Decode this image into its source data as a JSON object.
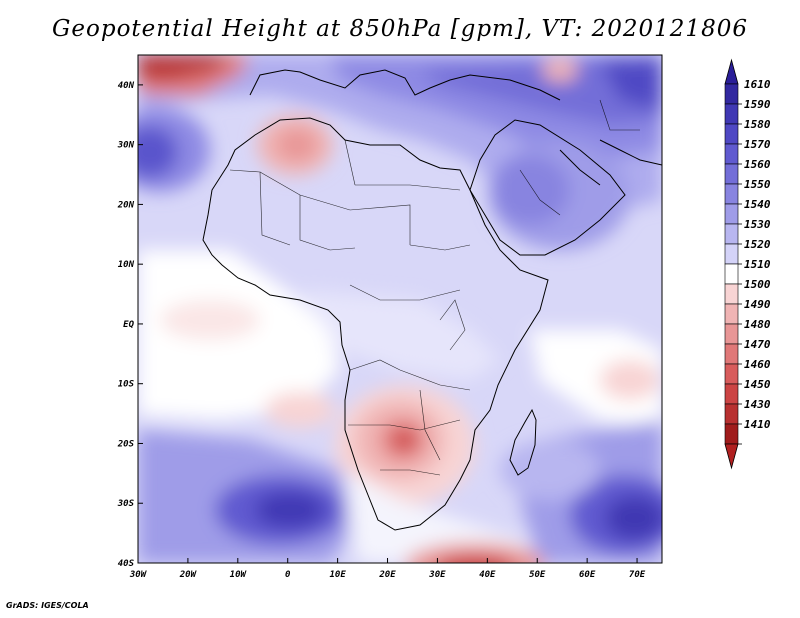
{
  "title": "Geopotential Height at 850hPa [gpm], VT: 2020121806",
  "credit": "GrADS: IGES/COLA",
  "map": {
    "variable": "Geopotential Height at 850hPa",
    "units": "gpm",
    "valid_time": "2020121806",
    "lon_range": [
      -30,
      75
    ],
    "lat_range": [
      -40,
      45
    ],
    "lon_ticks": [
      {
        "value": -30,
        "label": "30W"
      },
      {
        "value": -20,
        "label": "20W"
      },
      {
        "value": -10,
        "label": "10W"
      },
      {
        "value": 0,
        "label": "0"
      },
      {
        "value": 10,
        "label": "10E"
      },
      {
        "value": 20,
        "label": "20E"
      },
      {
        "value": 30,
        "label": "30E"
      },
      {
        "value": 40,
        "label": "40E"
      },
      {
        "value": 50,
        "label": "50E"
      },
      {
        "value": 60,
        "label": "60E"
      },
      {
        "value": 70,
        "label": "70E"
      }
    ],
    "lat_ticks": [
      {
        "value": 40,
        "label": "40N"
      },
      {
        "value": 30,
        "label": "30N"
      },
      {
        "value": 20,
        "label": "20N"
      },
      {
        "value": 10,
        "label": "10N"
      },
      {
        "value": 0,
        "label": "EQ"
      },
      {
        "value": -10,
        "label": "10S"
      },
      {
        "value": -20,
        "label": "20S"
      },
      {
        "value": -30,
        "label": "30S"
      },
      {
        "value": -40,
        "label": "40S"
      }
    ]
  },
  "colorbar": {
    "levels": [
      {
        "label": "1610",
        "color": "#3228a0"
      },
      {
        "label": "1590",
        "color": "#4038b4"
      },
      {
        "label": "1580",
        "color": "#4f48c4"
      },
      {
        "label": "1570",
        "color": "#605ad0"
      },
      {
        "label": "1560",
        "color": "#736ed8"
      },
      {
        "label": "1550",
        "color": "#8884e0"
      },
      {
        "label": "1540",
        "color": "#9f9ce8"
      },
      {
        "label": "1530",
        "color": "#b8b6f0"
      },
      {
        "label": "1520",
        "color": "#d4d3f8"
      },
      {
        "label": "1510",
        "color": "#ffffff"
      },
      {
        "label": "1500",
        "color": "#f8d4d4"
      },
      {
        "label": "1490",
        "color": "#f0b4b4"
      },
      {
        "label": "1480",
        "color": "#e89696"
      },
      {
        "label": "1470",
        "color": "#e07878"
      },
      {
        "label": "1460",
        "color": "#d85c5c"
      },
      {
        "label": "1450",
        "color": "#cc4444"
      },
      {
        "label": "1430",
        "color": "#b83030"
      },
      {
        "label": "1410",
        "color": "#a01c1c"
      }
    ],
    "top_arrow_color": "#2a1e98",
    "bottom_arrow_color": "#b02020"
  }
}
